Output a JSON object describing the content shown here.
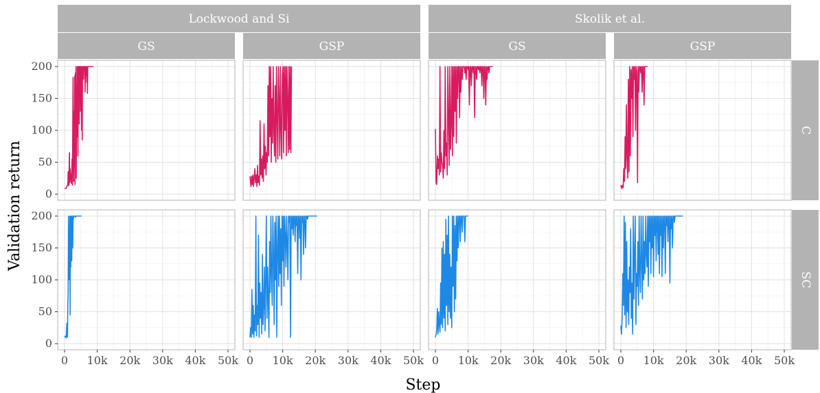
{
  "chart_data": {
    "type": "line",
    "xlabel": "Step",
    "ylabel": "Validation return",
    "xlim": [
      0,
      50000
    ],
    "ylim": [
      0,
      200
    ],
    "x_ticks": [
      0,
      10000,
      20000,
      30000,
      40000,
      50000
    ],
    "x_tick_labels": [
      "0",
      "10k",
      "20k",
      "30k",
      "40k",
      "50k"
    ],
    "y_ticks": [
      0,
      50,
      100,
      150,
      200
    ],
    "y_tick_labels": [
      "0",
      "50",
      "100",
      "150",
      "200"
    ],
    "grid": true,
    "facet_col_groups": [
      {
        "label": "Lockwood and Si",
        "columns": [
          "GS",
          "GSP"
        ]
      },
      {
        "label": "Skolik et al.",
        "columns": [
          "GS",
          "GSP"
        ]
      }
    ],
    "facet_rows": [
      "C",
      "SC"
    ],
    "row_colors": {
      "C": "#d81b60",
      "SC": "#1e88e5"
    },
    "series": [
      {
        "row": "C",
        "col": 0,
        "x": [
          0,
          500,
          700,
          1000,
          1100,
          1300,
          1500,
          1600,
          1700,
          1900,
          2100,
          2300,
          2400,
          2600,
          2800,
          2900,
          3000,
          3100,
          3200,
          3300,
          3400,
          3500,
          3600,
          3700,
          3800,
          3900,
          4000,
          4100,
          4200,
          4300,
          4400,
          4500,
          4600,
          4700,
          4800,
          4900,
          5000,
          5100,
          5200,
          5300,
          5400,
          5500,
          5600,
          5700,
          5800,
          5900,
          6000,
          6100,
          6200,
          6300,
          6400,
          6500,
          6600,
          6700,
          6800,
          6900,
          7000,
          7100,
          7300,
          7500,
          8000,
          8800
        ],
        "y": [
          9,
          9,
          12,
          15,
          35,
          13,
          65,
          18,
          40,
          25,
          17,
          55,
          14,
          183,
          20,
          130,
          40,
          185,
          15,
          190,
          60,
          200,
          25,
          170,
          90,
          200,
          140,
          60,
          200,
          180,
          200,
          110,
          200,
          160,
          200,
          130,
          200,
          170,
          100,
          200,
          85,
          200,
          190,
          200,
          180,
          200,
          200,
          195,
          200,
          160,
          200,
          200,
          185,
          200,
          175,
          200,
          158,
          200,
          200,
          200,
          200,
          200
        ]
      },
      {
        "row": "C",
        "col": 1,
        "x": [
          0,
          300,
          500,
          700,
          900,
          1100,
          1300,
          1500,
          1700,
          1900,
          2100,
          2300,
          2500,
          2700,
          2900,
          3100,
          3300,
          3500,
          3700,
          3900,
          4100,
          4300,
          4500,
          4700,
          4900,
          5100,
          5300,
          5500,
          5700,
          5900,
          6100,
          6300,
          6500,
          6700,
          6900,
          7100,
          7300,
          7500,
          7700,
          7900,
          8100,
          8300,
          8500,
          8700,
          8900,
          9100,
          9300,
          9500,
          9700,
          9900,
          10100,
          10300,
          10500,
          10700,
          10900,
          11100,
          11300,
          11500,
          11700,
          11900,
          12100,
          12300,
          12500,
          12700
        ],
        "y": [
          28,
          12,
          28,
          15,
          30,
          12,
          25,
          40,
          18,
          30,
          12,
          45,
          18,
          28,
          14,
          115,
          30,
          55,
          25,
          60,
          20,
          110,
          40,
          75,
          30,
          65,
          50,
          170,
          60,
          200,
          90,
          200,
          50,
          150,
          80,
          200,
          100,
          60,
          170,
          50,
          200,
          120,
          55,
          200,
          150,
          60,
          200,
          100,
          55,
          185,
          200,
          65,
          200,
          100,
          200,
          60,
          200,
          150,
          65,
          200,
          70,
          200,
          65,
          200
        ]
      },
      {
        "row": "C",
        "col": 2,
        "x": [
          0,
          200,
          400,
          600,
          800,
          1000,
          1200,
          1400,
          1600,
          1800,
          2000,
          2200,
          2400,
          2600,
          2800,
          3000,
          3200,
          3400,
          3600,
          3800,
          4000,
          4200,
          4400,
          4600,
          4800,
          5000,
          5200,
          5400,
          5600,
          5800,
          6000,
          6200,
          6400,
          6600,
          6800,
          7000,
          7200,
          7400,
          7600,
          7800,
          8000,
          8200,
          8400,
          8600,
          8800,
          9000,
          9200,
          9400,
          9600,
          9800,
          10000,
          10200,
          10400,
          10600,
          10800,
          11000,
          11200,
          11400,
          11600,
          11800,
          12000,
          12200,
          12400,
          12600,
          12800,
          13000,
          13200,
          13400,
          13600,
          13800,
          14000,
          14200,
          14400,
          14600,
          14800,
          15000,
          15200,
          15400,
          15600,
          15800,
          16000,
          16200,
          16400,
          16600,
          16800,
          17000,
          17500
        ],
        "y": [
          102,
          18,
          15,
          60,
          40,
          55,
          30,
          200,
          35,
          65,
          50,
          45,
          25,
          100,
          40,
          200,
          60,
          80,
          30,
          200,
          120,
          45,
          200,
          70,
          110,
          200,
          60,
          200,
          90,
          200,
          130,
          200,
          80,
          200,
          150,
          200,
          200,
          120,
          200,
          160,
          200,
          180,
          200,
          200,
          200,
          190,
          200,
          180,
          200,
          200,
          195,
          200,
          140,
          200,
          200,
          170,
          200,
          200,
          190,
          200,
          120,
          200,
          200,
          180,
          200,
          200,
          195,
          200,
          190,
          200,
          200,
          170,
          200,
          200,
          150,
          200,
          200,
          140,
          200,
          180,
          200,
          200,
          190,
          200,
          200,
          200,
          200
        ]
      },
      {
        "row": "C",
        "col": 3,
        "x": [
          0,
          300,
          500,
          700,
          900,
          1100,
          1300,
          1500,
          1700,
          1900,
          2100,
          2300,
          2500,
          2700,
          2900,
          3100,
          3300,
          3500,
          3700,
          3900,
          4100,
          4300,
          4500,
          4700,
          4900,
          5100,
          5300,
          5500,
          5700,
          5900,
          6100,
          6300,
          6500,
          6700,
          6900,
          7100,
          7300,
          7500,
          7800,
          8200
        ],
        "y": [
          14,
          9,
          14,
          10,
          40,
          20,
          90,
          40,
          140,
          60,
          25,
          180,
          35,
          200,
          60,
          195,
          150,
          200,
          90,
          200,
          180,
          200,
          100,
          200,
          190,
          18,
          200,
          160,
          200,
          200,
          190,
          200,
          160,
          200,
          200,
          140,
          200,
          200,
          200,
          200
        ]
      },
      {
        "row": "SC",
        "col": 0,
        "x": [
          0,
          300,
          500,
          700,
          900,
          1000,
          1100,
          1200,
          1300,
          1400,
          1500,
          1600,
          1700,
          1800,
          1900,
          2000,
          2100,
          2200,
          2300,
          2400,
          2500,
          2600,
          2700,
          2800,
          2900,
          3000,
          3100,
          3200,
          3300,
          3400,
          3500,
          3700,
          4000,
          4500,
          5200
        ],
        "y": [
          10,
          12,
          9,
          32,
          10,
          60,
          80,
          200,
          102,
          100,
          150,
          200,
          45,
          200,
          120,
          200,
          150,
          130,
          200,
          200,
          150,
          200,
          195,
          200,
          200,
          200,
          200,
          200,
          198,
          200,
          200,
          200,
          200,
          200,
          200
        ]
      },
      {
        "row": "SC",
        "col": 1,
        "x": [
          0,
          200,
          400,
          600,
          800,
          1000,
          1200,
          1400,
          1600,
          1800,
          2000,
          2200,
          2400,
          2600,
          2800,
          3000,
          3200,
          3400,
          3600,
          3800,
          4000,
          4200,
          4400,
          4600,
          4800,
          5000,
          5200,
          5400,
          5600,
          5800,
          6000,
          6200,
          6400,
          6600,
          6800,
          7000,
          7200,
          7400,
          7600,
          7800,
          8000,
          8200,
          8400,
          8600,
          8800,
          9000,
          9200,
          9400,
          9600,
          9800,
          10000,
          10200,
          10400,
          10600,
          10800,
          11000,
          11200,
          11400,
          11600,
          11800,
          12000,
          12200,
          12400,
          12600,
          12800,
          13000,
          13200,
          13400,
          13600,
          13800,
          14000,
          14200,
          14400,
          14600,
          14800,
          15000,
          15200,
          15400,
          15600,
          15800,
          16000,
          16200,
          16400,
          16600,
          16800,
          17000,
          17200,
          17400,
          17600,
          17800,
          18000,
          18500,
          19000,
          19500,
          20500
        ],
        "y": [
          10,
          25,
          10,
          85,
          15,
          60,
          10,
          45,
          20,
          200,
          12,
          60,
          30,
          170,
          10,
          95,
          40,
          80,
          15,
          140,
          30,
          60,
          120,
          20,
          100,
          200,
          40,
          120,
          70,
          10,
          160,
          80,
          200,
          110,
          60,
          200,
          140,
          30,
          190,
          100,
          200,
          10,
          150,
          200,
          90,
          200,
          110,
          180,
          60,
          200,
          130,
          200,
          90,
          200,
          170,
          120,
          200,
          160,
          100,
          200,
          190,
          200,
          10,
          200,
          180,
          200,
          170,
          200,
          200,
          160,
          200,
          185,
          200,
          110,
          200,
          200,
          165,
          200,
          100,
          200,
          190,
          200,
          140,
          200,
          200,
          150,
          200,
          200,
          195,
          200,
          200,
          200,
          200,
          200,
          200
        ]
      },
      {
        "row": "SC",
        "col": 2,
        "x": [
          0,
          200,
          400,
          600,
          800,
          1000,
          1200,
          1400,
          1600,
          1800,
          2000,
          2200,
          2400,
          2600,
          2800,
          3000,
          3200,
          3400,
          3600,
          3800,
          4000,
          4200,
          4400,
          4600,
          4800,
          5000,
          5200,
          5400,
          5600,
          5800,
          6000,
          6200,
          6400,
          6600,
          6800,
          7000,
          7200,
          7400,
          7600,
          7800,
          8000,
          8200,
          8400,
          8600,
          8800,
          9000,
          9200,
          9400,
          9600,
          10000
        ],
        "y": [
          10,
          14,
          20,
          55,
          15,
          50,
          30,
          18,
          95,
          30,
          150,
          25,
          160,
          40,
          140,
          20,
          195,
          60,
          170,
          30,
          200,
          50,
          140,
          40,
          120,
          25,
          200,
          90,
          200,
          50,
          185,
          70,
          200,
          130,
          200,
          150,
          200,
          200,
          160,
          200,
          200,
          175,
          200,
          200,
          200,
          160,
          200,
          200,
          200,
          200
        ]
      },
      {
        "row": "SC",
        "col": 3,
        "x": [
          0,
          200,
          400,
          600,
          800,
          1000,
          1200,
          1400,
          1600,
          1800,
          2000,
          2200,
          2400,
          2600,
          2800,
          3000,
          3200,
          3400,
          3600,
          3800,
          4000,
          4200,
          4400,
          4600,
          4800,
          5000,
          5200,
          5400,
          5600,
          5800,
          6000,
          6200,
          6400,
          6600,
          6800,
          7000,
          7200,
          7400,
          7600,
          7800,
          8000,
          8200,
          8400,
          8600,
          8800,
          9000,
          9200,
          9400,
          9600,
          9800,
          10000,
          10200,
          10400,
          10600,
          10800,
          11000,
          11200,
          11400,
          11600,
          11800,
          12000,
          12200,
          12400,
          12600,
          12800,
          13000,
          13200,
          13400,
          13600,
          13800,
          14000,
          14200,
          14400,
          14600,
          14800,
          15000,
          15200,
          15400,
          15600,
          15800,
          16000,
          16200,
          16400,
          16600,
          16800,
          17000,
          17200,
          17400,
          17600,
          17800,
          18000,
          18500,
          19000
        ],
        "y": [
          28,
          15,
          40,
          110,
          60,
          200,
          45,
          190,
          25,
          160,
          50,
          100,
          30,
          120,
          80,
          180,
          40,
          95,
          15,
          200,
          70,
          140,
          200,
          30,
          110,
          90,
          160,
          60,
          200,
          110,
          80,
          200,
          130,
          70,
          200,
          100,
          160,
          110,
          200,
          140,
          120,
          200,
          90,
          200,
          160,
          200,
          110,
          200,
          150,
          200,
          105,
          200,
          170,
          200,
          130,
          200,
          200,
          140,
          200,
          110,
          200,
          170,
          200,
          105,
          200,
          150,
          200,
          200,
          110,
          200,
          185,
          200,
          160,
          200,
          200,
          95,
          200,
          180,
          200,
          150,
          200,
          200,
          190,
          200,
          200,
          200,
          200,
          200,
          200,
          200,
          200,
          200,
          200
        ]
      }
    ]
  }
}
